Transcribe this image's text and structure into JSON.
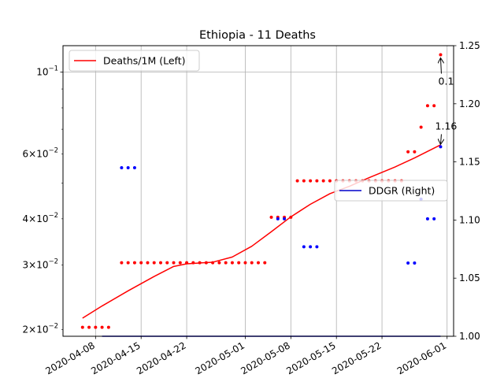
{
  "chart_data": {
    "type": "line",
    "title": "Ethiopia - 11 Deaths",
    "x_ticks": [
      "2020-04-08",
      "2020-04-15",
      "2020-04-22",
      "2020-05-01",
      "2020-05-08",
      "2020-05-15",
      "2020-05-22",
      "2020-06-01"
    ],
    "left_axis": {
      "scale": "log",
      "ylim": [
        0.0192,
        0.118
      ],
      "major_ticks": [
        {
          "value": 0.1,
          "label": "10^-1",
          "base": "10",
          "exp": "−1"
        }
      ],
      "minor_ticks": [
        {
          "value": 0.02,
          "label": "2×10^-2",
          "mant": "2×10",
          "exp": "−2"
        },
        {
          "value": 0.03,
          "label": "3×10^-2",
          "mant": "3×10",
          "exp": "−2"
        },
        {
          "value": 0.04,
          "label": "4×10^-2",
          "mant": "4×10",
          "exp": "−2"
        },
        {
          "value": 0.06,
          "label": "6×10^-2",
          "mant": "6×10",
          "exp": "−2"
        }
      ],
      "unlabeled_minor": [
        0.05,
        0.07,
        0.08,
        0.09
      ]
    },
    "right_axis": {
      "scale": "linear",
      "ylim": [
        1.0,
        1.25
      ],
      "ticks": [
        "1.00",
        "1.05",
        "1.10",
        "1.15",
        "1.20",
        "1.25"
      ]
    },
    "grid": true,
    "series": [
      {
        "name": "Deaths/1M (Left)",
        "axis": "left",
        "style": "line",
        "color": "#ff0000",
        "points": [
          [
            "2020-04-06",
            0.0215
          ],
          [
            "2020-04-09",
            0.0232
          ],
          [
            "2020-04-13",
            0.0255
          ],
          [
            "2020-04-17",
            0.0279
          ],
          [
            "2020-04-20",
            0.0297
          ],
          [
            "2020-04-22",
            0.0302
          ],
          [
            "2020-04-26",
            0.0305
          ],
          [
            "2020-04-29",
            0.0315
          ],
          [
            "2020-05-02",
            0.0337
          ],
          [
            "2020-05-05",
            0.0369
          ],
          [
            "2020-05-08",
            0.0405
          ],
          [
            "2020-05-11",
            0.0438
          ],
          [
            "2020-05-14",
            0.0468
          ],
          [
            "2020-05-17",
            0.049
          ],
          [
            "2020-05-20",
            0.0517
          ],
          [
            "2020-05-24",
            0.0553
          ],
          [
            "2020-05-27",
            0.0585
          ],
          [
            "2020-05-31",
            0.0635
          ]
        ]
      },
      {
        "name": "Deaths/1M points",
        "axis": "left",
        "style": "scatter",
        "color": "#ff0000",
        "points": [
          [
            "2020-04-06",
            0.0203
          ],
          [
            "2020-04-07",
            0.0203
          ],
          [
            "2020-04-08",
            0.0203
          ],
          [
            "2020-04-09",
            0.0203
          ],
          [
            "2020-04-10",
            0.0203
          ],
          [
            "2020-04-12",
            0.0304
          ],
          [
            "2020-04-13",
            0.0304
          ],
          [
            "2020-04-14",
            0.0304
          ],
          [
            "2020-04-15",
            0.0304
          ],
          [
            "2020-04-16",
            0.0304
          ],
          [
            "2020-04-17",
            0.0304
          ],
          [
            "2020-04-18",
            0.0304
          ],
          [
            "2020-04-19",
            0.0304
          ],
          [
            "2020-04-20",
            0.0304
          ],
          [
            "2020-04-21",
            0.0304
          ],
          [
            "2020-04-22",
            0.0304
          ],
          [
            "2020-04-23",
            0.0304
          ],
          [
            "2020-04-24",
            0.0304
          ],
          [
            "2020-04-25",
            0.0304
          ],
          [
            "2020-04-26",
            0.0304
          ],
          [
            "2020-04-27",
            0.0304
          ],
          [
            "2020-04-28",
            0.0304
          ],
          [
            "2020-04-29",
            0.0304
          ],
          [
            "2020-04-30",
            0.0304
          ],
          [
            "2020-05-01",
            0.0304
          ],
          [
            "2020-05-02",
            0.0304
          ],
          [
            "2020-05-03",
            0.0304
          ],
          [
            "2020-05-04",
            0.0304
          ],
          [
            "2020-05-05",
            0.0404
          ],
          [
            "2020-05-06",
            0.0404
          ],
          [
            "2020-05-07",
            0.0404
          ],
          [
            "2020-05-08",
            0.0404
          ],
          [
            "2020-05-09",
            0.0507
          ],
          [
            "2020-05-10",
            0.0507
          ],
          [
            "2020-05-11",
            0.0507
          ],
          [
            "2020-05-12",
            0.0507
          ],
          [
            "2020-05-13",
            0.0507
          ],
          [
            "2020-05-14",
            0.0507
          ],
          [
            "2020-05-15",
            0.0507
          ],
          [
            "2020-05-16",
            0.0507
          ],
          [
            "2020-05-17",
            0.0507
          ],
          [
            "2020-05-18",
            0.0507
          ],
          [
            "2020-05-19",
            0.0507
          ],
          [
            "2020-05-20",
            0.0507
          ],
          [
            "2020-05-21",
            0.0507
          ],
          [
            "2020-05-22",
            0.0507
          ],
          [
            "2020-05-23",
            0.0507
          ],
          [
            "2020-05-24",
            0.0507
          ],
          [
            "2020-05-25",
            0.0507
          ],
          [
            "2020-05-26",
            0.0608
          ],
          [
            "2020-05-27",
            0.0608
          ],
          [
            "2020-05-28",
            0.0709
          ],
          [
            "2020-05-29",
            0.0811
          ],
          [
            "2020-05-30",
            0.0811
          ],
          [
            "2020-05-31",
            0.1115
          ]
        ]
      },
      {
        "name": "DDGR (Right)",
        "axis": "right",
        "style": "line",
        "color": "#0000cc",
        "points": [
          [
            "2020-04-09",
            1.0
          ],
          [
            "2020-05-31",
            1.0
          ]
        ]
      },
      {
        "name": "DDGR points",
        "axis": "right",
        "style": "scatter",
        "color": "#0000ff",
        "points": [
          [
            "2020-04-12",
            1.145
          ],
          [
            "2020-04-13",
            1.145
          ],
          [
            "2020-04-14",
            1.145
          ],
          [
            "2020-05-06",
            1.101
          ],
          [
            "2020-05-07",
            1.101
          ],
          [
            "2020-05-10",
            1.077
          ],
          [
            "2020-05-11",
            1.077
          ],
          [
            "2020-05-12",
            1.077
          ],
          [
            "2020-05-26",
            1.063
          ],
          [
            "2020-05-27",
            1.063
          ],
          [
            "2020-05-28",
            1.118
          ],
          [
            "2020-05-29",
            1.101
          ],
          [
            "2020-05-30",
            1.101
          ],
          [
            "2020-05-31",
            1.163
          ]
        ]
      }
    ],
    "legends": [
      {
        "label": "Deaths/1M (Left)",
        "color": "#ff0000",
        "placement": "upper-left"
      },
      {
        "label": "DDGR (Right)",
        "color": "#0000cc",
        "placement": "center-right"
      }
    ],
    "annotations": [
      {
        "text": "0.1",
        "axis": "left",
        "x": "2020-05-31",
        "y": 0.1115
      },
      {
        "text": "1.16",
        "axis": "right",
        "x": "2020-05-31",
        "y": 1.163
      }
    ]
  }
}
